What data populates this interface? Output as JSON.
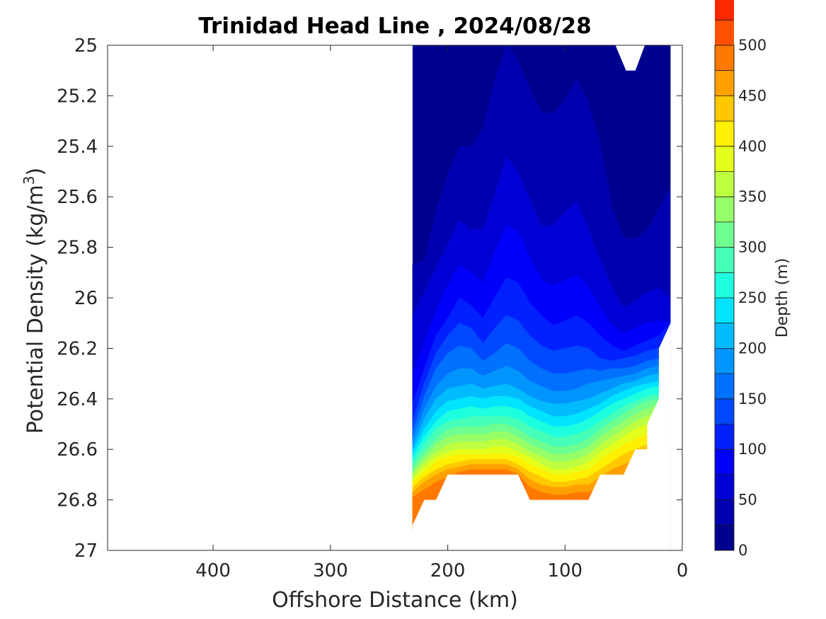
{
  "chart_data": {
    "type": "contour",
    "title": "Trinidad Head Line , 2024/08/28",
    "xlabel": "Offshore Distance (km)",
    "ylabel_prefix": "Potential Density (kg/m",
    "ylabel_sup": "3",
    "ylabel_suffix": ")",
    "colorbar_label": "Depth (m)",
    "x_reversed": true,
    "y_reversed": true,
    "xlim": [
      490,
      0
    ],
    "ylim": [
      25,
      27
    ],
    "x_ticks": [
      400,
      300,
      200,
      100,
      0
    ],
    "x_tick_labels": [
      "400",
      "300",
      "200",
      "100",
      "0"
    ],
    "y_ticks": [
      25,
      25.2,
      25.4,
      25.6,
      25.8,
      26,
      26.2,
      26.4,
      26.6,
      26.8,
      27
    ],
    "y_tick_labels": [
      "25",
      "25.2",
      "25.4",
      "25.6",
      "25.8",
      "26",
      "26.2",
      "26.4",
      "26.6",
      "26.8",
      "27"
    ],
    "colorbar_range": [
      0,
      500
    ],
    "colorbar_ticks": [
      0,
      50,
      100,
      150,
      200,
      250,
      300,
      350,
      400,
      450,
      500
    ],
    "colorbar_tick_labels": [
      "0",
      "50",
      "100",
      "150",
      "200",
      "250",
      "300",
      "350",
      "400",
      "450",
      "500"
    ],
    "contour_level_step": 25,
    "colormap": "jet",
    "colors": [
      "#00008f",
      "#0000b0",
      "#0000d6",
      "#0000fa",
      "#0020ff",
      "#0048ff",
      "#0070ff",
      "#0094ff",
      "#00bcff",
      "#00e4ff",
      "#1effe0",
      "#46ffb8",
      "#6eff90",
      "#96ff68",
      "#beff40",
      "#e4ff1a",
      "#ffef00",
      "#ffc800",
      "#ffa000",
      "#ff7800",
      "#ff5000",
      "#ff2800",
      "#f80000",
      "#d00000",
      "#aa0000"
    ],
    "station_x": [
      230,
      220,
      210,
      200,
      190,
      180,
      170,
      160,
      150,
      140,
      130,
      120,
      110,
      100,
      90,
      80,
      70,
      60,
      50,
      40,
      30,
      20,
      10
    ],
    "isopycnal_depth_contours": [
      {
        "depth": 25,
        "density": [
          25.87,
          25.85,
          25.66,
          25.51,
          25.4,
          25.4,
          25.33,
          25.14,
          25.0,
          25.06,
          25.17,
          25.27,
          25.27,
          25.22,
          25.13,
          25.23,
          25.39,
          25.64,
          25.76,
          25.77,
          25.73,
          25.65,
          25.56
        ]
      },
      {
        "depth": 50,
        "density": [
          26.07,
          25.98,
          25.88,
          25.79,
          25.69,
          25.73,
          25.73,
          25.59,
          25.44,
          25.5,
          25.61,
          25.72,
          25.71,
          25.66,
          25.62,
          25.73,
          25.85,
          25.96,
          26.04,
          26.01,
          25.98,
          25.96,
          26.0
        ]
      },
      {
        "depth": 75,
        "density": [
          26.3,
          26.18,
          26.05,
          25.95,
          25.87,
          25.9,
          25.94,
          25.82,
          25.71,
          25.74,
          25.84,
          25.93,
          25.95,
          25.93,
          25.91,
          25.96,
          26.04,
          26.11,
          26.14,
          26.12,
          26.1,
          26.09,
          26.1
        ]
      },
      {
        "depth": 100,
        "density": [
          26.42,
          26.28,
          26.15,
          26.08,
          26.0,
          26.03,
          26.08,
          26.0,
          25.92,
          25.94,
          26.02,
          26.07,
          26.11,
          26.09,
          26.07,
          26.1,
          26.15,
          26.19,
          26.21,
          26.19,
          26.17,
          26.15,
          26.1
        ]
      },
      {
        "depth": 125,
        "density": [
          26.49,
          26.34,
          26.22,
          26.15,
          26.1,
          26.12,
          26.18,
          26.12,
          26.07,
          26.09,
          26.15,
          26.19,
          26.21,
          26.2,
          26.19,
          26.2,
          26.24,
          26.25,
          26.24,
          26.23,
          26.21,
          26.2,
          26.15
        ]
      },
      {
        "depth": 150,
        "density": [
          26.53,
          26.39,
          26.28,
          26.22,
          26.19,
          26.2,
          26.25,
          26.22,
          26.18,
          26.2,
          26.25,
          26.28,
          26.3,
          26.3,
          26.29,
          26.28,
          26.29,
          26.28,
          26.28,
          26.27,
          26.25,
          26.24,
          26.2
        ]
      },
      {
        "depth": 175,
        "density": [
          26.56,
          26.44,
          26.35,
          26.3,
          26.28,
          26.28,
          26.31,
          26.29,
          26.27,
          26.29,
          26.33,
          26.35,
          26.37,
          26.37,
          26.36,
          26.34,
          26.33,
          26.32,
          26.31,
          26.3,
          26.28,
          26.27,
          26.25
        ]
      },
      {
        "depth": 200,
        "density": [
          26.59,
          26.48,
          26.4,
          26.36,
          26.35,
          26.34,
          26.36,
          26.35,
          26.34,
          26.36,
          26.39,
          26.41,
          26.42,
          26.42,
          26.41,
          26.4,
          26.38,
          26.36,
          26.34,
          26.33,
          26.31,
          26.3,
          26.28
        ]
      },
      {
        "depth": 225,
        "density": [
          26.61,
          26.52,
          26.45,
          26.41,
          26.4,
          26.39,
          26.4,
          26.39,
          26.39,
          26.4,
          26.43,
          26.45,
          26.47,
          26.47,
          26.46,
          26.44,
          26.42,
          26.39,
          26.37,
          26.35,
          26.34,
          26.33,
          26.31
        ]
      },
      {
        "depth": 250,
        "density": [
          26.63,
          26.55,
          26.49,
          26.45,
          26.44,
          26.43,
          26.44,
          26.43,
          26.43,
          26.44,
          26.47,
          26.49,
          26.51,
          26.51,
          26.5,
          26.48,
          26.45,
          26.42,
          26.4,
          26.38,
          26.36,
          26.35,
          26.34
        ]
      },
      {
        "depth": 275,
        "density": [
          26.65,
          26.58,
          26.52,
          26.49,
          26.48,
          26.47,
          26.47,
          26.47,
          26.47,
          26.48,
          26.51,
          26.53,
          26.55,
          26.55,
          26.54,
          26.52,
          26.49,
          26.46,
          26.43,
          26.41,
          26.39,
          26.38,
          26.36
        ]
      },
      {
        "depth": 300,
        "density": [
          26.67,
          26.61,
          26.56,
          26.52,
          26.51,
          26.51,
          26.51,
          26.5,
          26.5,
          26.52,
          26.55,
          26.57,
          26.59,
          26.59,
          26.58,
          26.56,
          26.52,
          26.49,
          26.46,
          26.43,
          26.41,
          26.4,
          26.38
        ]
      },
      {
        "depth": 325,
        "density": [
          26.69,
          26.63,
          26.58,
          26.55,
          26.54,
          26.54,
          26.54,
          26.53,
          26.53,
          26.55,
          26.58,
          26.6,
          26.62,
          26.62,
          26.61,
          26.59,
          26.55,
          26.52,
          26.49,
          26.46,
          26.44,
          26.42,
          26.4
        ]
      },
      {
        "depth": 350,
        "density": [
          26.7,
          26.65,
          26.61,
          26.58,
          26.57,
          26.57,
          26.57,
          26.56,
          26.56,
          26.58,
          26.61,
          26.63,
          26.65,
          26.65,
          26.64,
          26.62,
          26.58,
          26.55,
          26.52,
          26.49,
          26.47,
          26.45,
          26.43
        ]
      },
      {
        "depth": 375,
        "density": [
          26.72,
          26.67,
          26.63,
          26.61,
          26.6,
          26.6,
          26.6,
          26.59,
          26.59,
          26.61,
          26.63,
          26.66,
          26.68,
          26.68,
          26.67,
          26.65,
          26.61,
          26.58,
          26.55,
          26.52,
          26.5,
          26.48,
          26.46
        ]
      },
      {
        "depth": 400,
        "density": [
          26.73,
          26.69,
          26.65,
          26.63,
          26.62,
          26.62,
          26.62,
          26.62,
          26.62,
          26.63,
          26.66,
          26.68,
          26.7,
          26.7,
          26.69,
          26.68,
          26.64,
          26.61,
          26.58,
          26.56,
          26.54,
          26.52,
          26.5
        ]
      },
      {
        "depth": 425,
        "density": [
          26.75,
          26.71,
          26.68,
          26.66,
          26.65,
          26.64,
          26.64,
          26.64,
          26.64,
          26.66,
          26.69,
          26.71,
          26.73,
          26.73,
          26.72,
          26.71,
          26.68,
          26.65,
          26.62,
          26.6,
          26.58,
          26.56,
          26.54
        ]
      },
      {
        "depth": 450,
        "density": [
          26.77,
          26.73,
          26.7,
          26.68,
          26.67,
          26.66,
          26.66,
          26.66,
          26.66,
          26.68,
          26.72,
          26.74,
          26.75,
          26.75,
          26.74,
          26.74,
          26.71,
          26.68,
          26.66,
          26.64,
          26.62,
          26.6,
          26.58
        ]
      },
      {
        "depth": 475,
        "density": [
          26.79,
          26.76,
          26.73,
          26.71,
          26.69,
          26.68,
          26.68,
          26.68,
          26.68,
          26.7,
          26.75,
          26.77,
          26.78,
          26.78,
          26.77,
          26.77,
          26.75,
          26.72,
          26.7,
          26.68,
          26.66,
          26.64,
          26.62
        ]
      }
    ],
    "data_domain": {
      "top_edge": [
        [
          230,
          25.0
        ],
        [
          10,
          25.0
        ]
      ],
      "bottom_edge": [
        [
          230,
          26.9
        ],
        [
          220,
          26.8
        ],
        [
          210,
          26.8
        ],
        [
          200,
          26.7
        ],
        [
          190,
          26.7
        ],
        [
          180,
          26.7
        ],
        [
          170,
          26.7
        ],
        [
          160,
          26.7
        ],
        [
          150,
          26.7
        ],
        [
          140,
          26.7
        ],
        [
          130,
          26.8
        ],
        [
          120,
          26.8
        ],
        [
          110,
          26.8
        ],
        [
          100,
          26.8
        ],
        [
          90,
          26.8
        ],
        [
          80,
          26.8
        ],
        [
          70,
          26.7
        ],
        [
          60,
          26.7
        ],
        [
          50,
          26.7
        ],
        [
          40,
          26.6
        ],
        [
          30,
          26.6
        ],
        [
          30,
          26.5
        ],
        [
          20,
          26.4
        ],
        [
          20,
          26.2
        ],
        [
          10,
          26.1
        ]
      ],
      "surface_gap": [
        [
          57,
          25.0
        ],
        [
          48,
          25.1
        ],
        [
          40,
          25.1
        ],
        [
          32,
          25.0
        ]
      ]
    }
  }
}
